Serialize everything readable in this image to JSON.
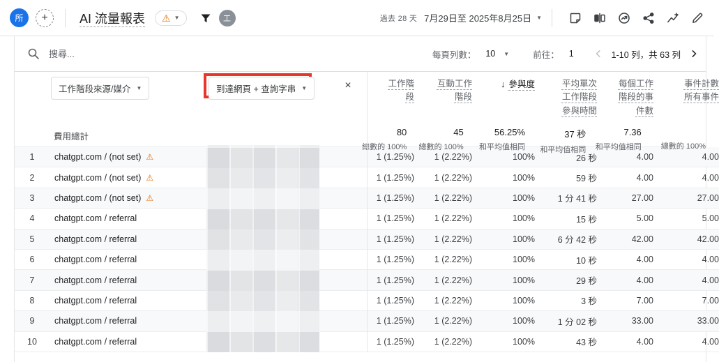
{
  "colors": {
    "accent_blue": "#1a73e8",
    "warning_orange": "#e8710a",
    "annotation_red": "#e8362d"
  },
  "appbar": {
    "property_badge": "所",
    "add_label": "+",
    "title": "AI 流量報表",
    "user_badge": "工",
    "date_preset": "過去 28 天",
    "date_range": "7月29日至 2025年8月25日",
    "icon_names": [
      "notes-icon",
      "ab-compare-icon",
      "insights-icon",
      "share-icon",
      "explore-icon",
      "edit-icon"
    ]
  },
  "toolbar": {
    "search_placeholder": "搜尋...",
    "rows_per_page_label": "每頁列數：",
    "rows_per_page_value": "10",
    "goto_label": "前往：",
    "goto_value": "1",
    "range_text": "1-10 列，共 63 列"
  },
  "table": {
    "warning_glyph": "⚠",
    "dimension_pickers": [
      {
        "label": "工作階段來源/媒介"
      },
      {
        "label": "到達網頁 + 查詢字串",
        "highlighted": true
      }
    ],
    "close_label": "×",
    "columns": [
      {
        "label": "工作階段"
      },
      {
        "label": "互動工作階段"
      },
      {
        "label": "參與度",
        "sorted": true,
        "sort_arrow": "↓"
      },
      {
        "label": "平均單次工作階段參與時間"
      },
      {
        "label": "每個工作階段的事件數"
      },
      {
        "label": "事件計數",
        "sub": "所有事件"
      }
    ],
    "totals": {
      "label": "費用總計",
      "values": [
        {
          "value": "80",
          "sub": "總數的 100%"
        },
        {
          "value": "45",
          "sub": "總數的 100%"
        },
        {
          "value": "56.25%",
          "sub": "和平均值相同"
        },
        {
          "value": "37 秒",
          "sub": "和平均值相同"
        },
        {
          "value": "7.36",
          "sub": "和平均值相同"
        },
        {
          "value": "",
          "sub": "總數的 100%"
        }
      ]
    },
    "rows": [
      {
        "n": "1",
        "dimension": "chatgpt.com / (not set)",
        "warning": true,
        "metrics": [
          "1 (1.25%)",
          "1 (2.22%)",
          "100%",
          "26 秒",
          "4.00",
          "4.00"
        ]
      },
      {
        "n": "2",
        "dimension": "chatgpt.com / (not set)",
        "warning": true,
        "metrics": [
          "1 (1.25%)",
          "1 (2.22%)",
          "100%",
          "59 秒",
          "4.00",
          "4.00"
        ]
      },
      {
        "n": "3",
        "dimension": "chatgpt.com / (not set)",
        "warning": true,
        "metrics": [
          "1 (1.25%)",
          "1 (2.22%)",
          "100%",
          "1 分 41 秒",
          "27.00",
          "27.00"
        ]
      },
      {
        "n": "4",
        "dimension": "chatgpt.com / referral",
        "warning": false,
        "metrics": [
          "1 (1.25%)",
          "1 (2.22%)",
          "100%",
          "15 秒",
          "5.00",
          "5.00"
        ]
      },
      {
        "n": "5",
        "dimension": "chatgpt.com / referral",
        "warning": false,
        "metrics": [
          "1 (1.25%)",
          "1 (2.22%)",
          "100%",
          "6 分 42 秒",
          "42.00",
          "42.00"
        ]
      },
      {
        "n": "6",
        "dimension": "chatgpt.com / referral",
        "warning": false,
        "metrics": [
          "1 (1.25%)",
          "1 (2.22%)",
          "100%",
          "10 秒",
          "4.00",
          "4.00"
        ]
      },
      {
        "n": "7",
        "dimension": "chatgpt.com / referral",
        "warning": false,
        "metrics": [
          "1 (1.25%)",
          "1 (2.22%)",
          "100%",
          "29 秒",
          "4.00",
          "4.00"
        ]
      },
      {
        "n": "8",
        "dimension": "chatgpt.com / referral",
        "warning": false,
        "metrics": [
          "1 (1.25%)",
          "1 (2.22%)",
          "100%",
          "3 秒",
          "7.00",
          "7.00"
        ]
      },
      {
        "n": "9",
        "dimension": "chatgpt.com / referral",
        "warning": false,
        "metrics": [
          "1 (1.25%)",
          "1 (2.22%)",
          "100%",
          "1 分 02 秒",
          "33.00",
          "33.00"
        ]
      },
      {
        "n": "10",
        "dimension": "chatgpt.com / referral",
        "warning": false,
        "metrics": [
          "1 (1.25%)",
          "1 (2.22%)",
          "100%",
          "43 秒",
          "4.00",
          "4.00"
        ]
      }
    ]
  }
}
